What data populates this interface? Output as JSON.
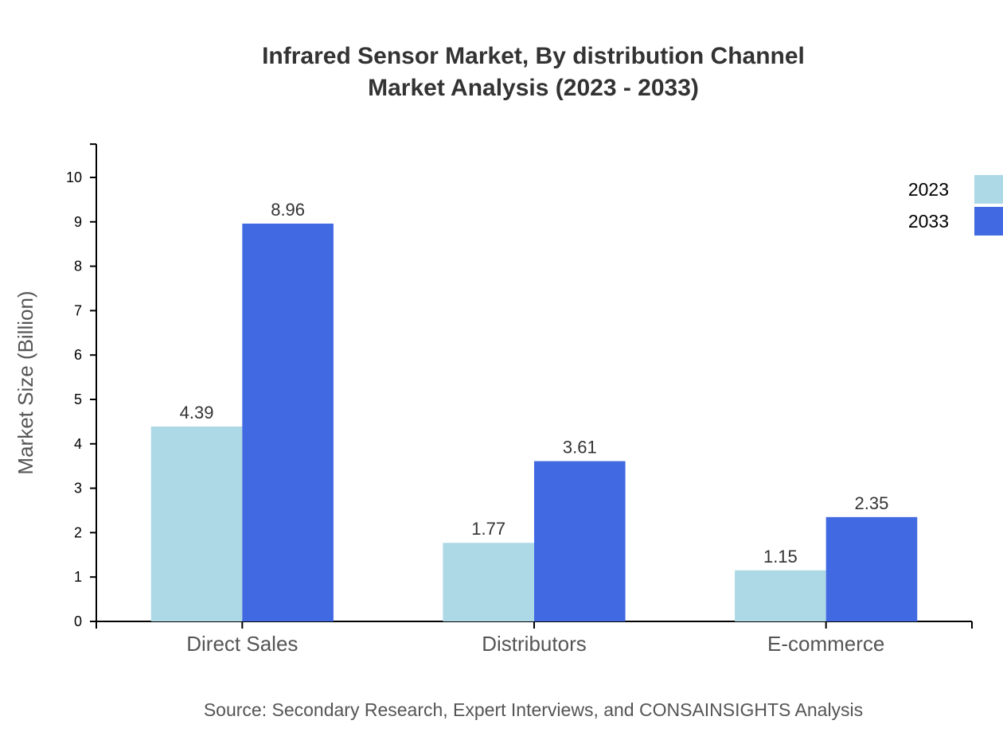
{
  "chart_data": {
    "type": "bar",
    "title": "Infrared Sensor Market, By distribution Channel",
    "subtitle": "Market Analysis (2023 - 2033)",
    "xlabel": "",
    "ylabel": "Market Size (Billion)",
    "ylim": [
      0,
      10.75
    ],
    "yticks": [
      0,
      1,
      2,
      3,
      4,
      5,
      6,
      7,
      8,
      9,
      10
    ],
    "grid": false,
    "legend": "top-right",
    "categories": [
      "Direct Sales",
      "Distributors",
      "E-commerce"
    ],
    "series": [
      {
        "name": "2023",
        "color": "#ADD8E6",
        "values": [
          4.39,
          1.77,
          1.15
        ]
      },
      {
        "name": "2033",
        "color": "#4169E1",
        "values": [
          8.96,
          3.61,
          2.35
        ]
      }
    ],
    "source": "Source: Secondary Research, Expert Interviews, and CONSAINSIGHTS Analysis"
  }
}
